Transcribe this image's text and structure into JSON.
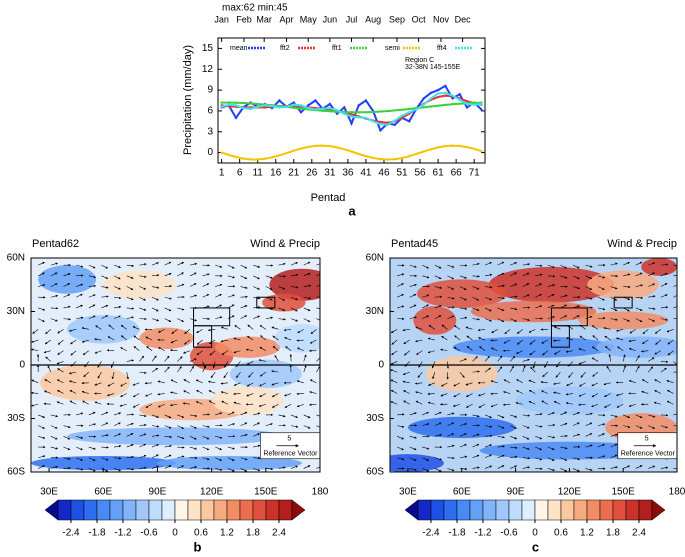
{
  "chart_data": {
    "type": "line",
    "annotation": "max:62 min:45",
    "ylabel": "Precipitation (mm/day)",
    "xlabel": "Pentad",
    "panel_label": "a",
    "region_title": "Region C",
    "region_extent": "32-38N 145-155E",
    "x": [
      1,
      3,
      5,
      7,
      9,
      11,
      13,
      15,
      17,
      19,
      21,
      23,
      25,
      27,
      29,
      31,
      33,
      35,
      37,
      39,
      41,
      43,
      45,
      47,
      49,
      51,
      53,
      55,
      57,
      59,
      61,
      63,
      65,
      67,
      69,
      71,
      73
    ],
    "series": [
      {
        "name": "mean",
        "color": "#1f3fff",
        "values": [
          6.5,
          6.8,
          5.0,
          6.5,
          7.2,
          6.6,
          7.0,
          6.4,
          7.5,
          6.6,
          7.2,
          5.8,
          6.8,
          7.5,
          6.3,
          7.0,
          5.6,
          6.5,
          4.2,
          6.8,
          7.5,
          6.0,
          3.2,
          4.2,
          4.0,
          5.0,
          4.5,
          6.3,
          7.8,
          8.6,
          9.0,
          9.6,
          7.8,
          8.4,
          6.5,
          7.2,
          6.2
        ]
      },
      {
        "name": "fft2",
        "color": "#e8322a",
        "values": [
          6.8,
          6.7,
          6.6,
          6.5,
          6.5,
          6.5,
          6.5,
          6.6,
          6.7,
          6.7,
          6.7,
          6.6,
          6.5,
          6.4,
          6.3,
          6.2,
          6.0,
          5.8,
          5.5,
          5.2,
          4.9,
          4.6,
          4.4,
          4.3,
          4.5,
          5.0,
          5.6,
          6.3,
          7.0,
          7.6,
          8.0,
          8.2,
          8.1,
          7.8,
          7.4,
          7.1,
          6.9
        ]
      },
      {
        "name": "fft1",
        "color": "#3ad13a",
        "values": [
          7.2,
          7.2,
          7.18,
          7.14,
          7.08,
          7.0,
          6.91,
          6.81,
          6.69,
          6.58,
          6.45,
          6.34,
          6.22,
          6.12,
          6.02,
          5.94,
          5.88,
          5.83,
          5.81,
          5.8,
          5.82,
          5.85,
          5.91,
          5.98,
          6.07,
          6.17,
          6.28,
          6.4,
          6.51,
          6.63,
          6.75,
          6.86,
          6.96,
          7.04,
          7.11,
          7.16,
          7.19
        ]
      },
      {
        "name": "semi",
        "color": "#f5c400",
        "values": [
          0,
          -0.34,
          -0.63,
          -0.86,
          -0.98,
          -0.99,
          -0.89,
          -0.68,
          -0.4,
          -0.07,
          0.27,
          0.58,
          0.82,
          0.96,
          1.0,
          0.93,
          0.74,
          0.47,
          0.15,
          -0.2,
          -0.51,
          -0.77,
          -0.94,
          -1.0,
          -0.95,
          -0.78,
          -0.52,
          -0.19,
          0.15,
          0.48,
          0.75,
          0.94,
          1.0,
          0.95,
          0.79,
          0.55,
          0.22
        ]
      },
      {
        "name": "fft4",
        "color": "#40e0f0",
        "values": [
          6.6,
          6.9,
          6.8,
          6.4,
          6.3,
          6.6,
          6.8,
          6.7,
          6.5,
          6.6,
          6.9,
          6.8,
          6.4,
          6.2,
          6.3,
          6.4,
          6.1,
          5.6,
          5.2,
          5.1,
          5.0,
          4.5,
          4.1,
          4.0,
          4.6,
          5.3,
          5.8,
          6.2,
          6.9,
          7.8,
          8.5,
          8.6,
          8.2,
          7.6,
          7.0,
          6.9,
          7.0
        ]
      }
    ],
    "xlim": [
      0,
      74
    ],
    "ylim": [
      -1.5,
      16.5
    ],
    "xticks": [
      1,
      6,
      11,
      16,
      21,
      26,
      31,
      36,
      41,
      46,
      51,
      56,
      61,
      66,
      71
    ],
    "yticks": [
      0,
      3,
      6,
      9,
      12,
      15
    ],
    "x2ticks": [
      {
        "value": 1,
        "label": "Jan"
      },
      {
        "value": 7.2,
        "label": "Feb"
      },
      {
        "value": 12.8,
        "label": "Mar"
      },
      {
        "value": 19,
        "label": "Apr"
      },
      {
        "value": 25,
        "label": "May"
      },
      {
        "value": 31,
        "label": "Jun"
      },
      {
        "value": 37,
        "label": "Jul"
      },
      {
        "value": 43,
        "label": "Aug"
      },
      {
        "value": 49.6,
        "label": "Sep"
      },
      {
        "value": 55.6,
        "label": "Oct"
      },
      {
        "value": 61.8,
        "label": "Nov"
      },
      {
        "value": 67.8,
        "label": "Dec"
      }
    ]
  },
  "maps": [
    {
      "title": "Pentad62",
      "subtitle": "Wind & Precip",
      "panel_label": "b"
    },
    {
      "title": "Pentad45",
      "subtitle": "Wind & Precip",
      "panel_label": "c"
    }
  ],
  "map_axes": {
    "xlim": [
      20,
      180
    ],
    "ylim": [
      -60,
      60
    ],
    "xticks": [
      {
        "value": 30,
        "label": "30E"
      },
      {
        "value": 60,
        "label": "60E"
      },
      {
        "value": 90,
        "label": "90E"
      },
      {
        "value": 120,
        "label": "120E"
      },
      {
        "value": 150,
        "label": "150E"
      },
      180
    ],
    "yticks": [
      {
        "value": 60,
        "label": "60N"
      },
      {
        "value": 30,
        "label": "30N"
      },
      0,
      {
        "value": -30,
        "label": "30S"
      },
      {
        "value": -60,
        "label": "60S"
      }
    ]
  },
  "reference_vector": {
    "value": 5,
    "label": "Reference Vector"
  },
  "colorbar": {
    "lim": [
      -2.7,
      2.7
    ],
    "ticks": [
      -2.4,
      -1.8,
      -1.2,
      -0.6,
      0,
      0.6,
      1.2,
      1.8,
      2.4
    ],
    "colors": [
      "#0a0a8c",
      "#1428c8",
      "#1e50e6",
      "#2e6ef0",
      "#4a8af5",
      "#64a0f8",
      "#82b4fa",
      "#a0c8fc",
      "#bedcfe",
      "#dceeff",
      "#fff4e6",
      "#fde2c6",
      "#fcc8a0",
      "#f8aa80",
      "#f28c64",
      "#ec6e50",
      "#e0503c",
      "#cc3228",
      "#b41e1e",
      "#8c0a0a"
    ]
  }
}
